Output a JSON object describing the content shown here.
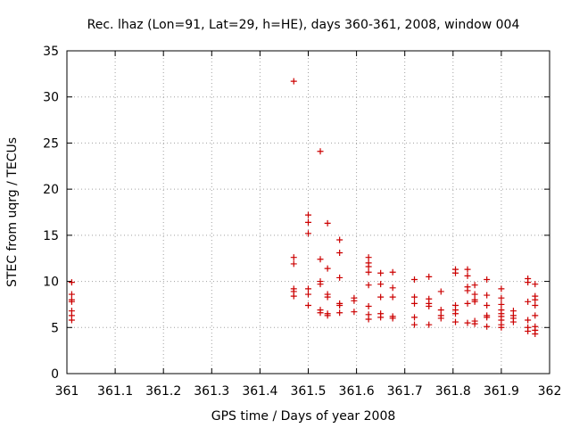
{
  "chart_data": {
    "type": "scatter",
    "title": "Rec. lhaz (Lon=91, Lat=29, h=HE), days 360-361, 2008, window 004",
    "xlabel": "GPS time / Days of year 2008",
    "ylabel": "STEC from uqrg / TECUs",
    "xlim": [
      361,
      362
    ],
    "ylim": [
      0,
      35
    ],
    "xticks": [
      "361",
      "361.1",
      "361.2",
      "361.3",
      "361.4",
      "361.5",
      "361.6",
      "361.7",
      "361.8",
      "361.9",
      "362"
    ],
    "yticks": [
      "0",
      "5",
      "10",
      "15",
      "20",
      "25",
      "30",
      "35"
    ],
    "grid": true,
    "marker": "+",
    "color": "#cc0000",
    "points": [
      [
        361.01,
        9.9
      ],
      [
        361.01,
        8.6
      ],
      [
        361.01,
        8.0
      ],
      [
        361.01,
        7.8
      ],
      [
        361.01,
        6.8
      ],
      [
        361.01,
        6.3
      ],
      [
        361.01,
        5.8
      ],
      [
        361.47,
        31.7
      ],
      [
        361.47,
        12.6
      ],
      [
        361.47,
        11.9
      ],
      [
        361.47,
        9.2
      ],
      [
        361.47,
        8.9
      ],
      [
        361.47,
        8.4
      ],
      [
        361.5,
        17.2
      ],
      [
        361.5,
        16.4
      ],
      [
        361.5,
        15.2
      ],
      [
        361.5,
        9.2
      ],
      [
        361.5,
        8.6
      ],
      [
        361.5,
        7.4
      ],
      [
        361.525,
        24.1
      ],
      [
        361.525,
        12.4
      ],
      [
        361.525,
        10.0
      ],
      [
        361.525,
        9.7
      ],
      [
        361.525,
        6.9
      ],
      [
        361.525,
        6.6
      ],
      [
        361.54,
        16.3
      ],
      [
        361.54,
        11.4
      ],
      [
        361.54,
        8.6
      ],
      [
        361.54,
        8.3
      ],
      [
        361.54,
        6.5
      ],
      [
        361.54,
        6.3
      ],
      [
        361.565,
        14.5
      ],
      [
        361.565,
        13.1
      ],
      [
        361.565,
        10.4
      ],
      [
        361.565,
        7.6
      ],
      [
        361.565,
        7.4
      ],
      [
        361.565,
        6.6
      ],
      [
        361.595,
        8.2
      ],
      [
        361.595,
        7.9
      ],
      [
        361.595,
        6.7
      ],
      [
        361.625,
        12.6
      ],
      [
        361.625,
        12.0
      ],
      [
        361.625,
        11.6
      ],
      [
        361.625,
        11.0
      ],
      [
        361.625,
        9.6
      ],
      [
        361.625,
        7.3
      ],
      [
        361.625,
        6.4
      ],
      [
        361.625,
        5.9
      ],
      [
        361.65,
        10.9
      ],
      [
        361.65,
        9.7
      ],
      [
        361.65,
        8.3
      ],
      [
        361.65,
        6.5
      ],
      [
        361.65,
        6.1
      ],
      [
        361.675,
        11.0
      ],
      [
        361.675,
        9.3
      ],
      [
        361.675,
        8.3
      ],
      [
        361.675,
        6.2
      ],
      [
        361.675,
        6.0
      ],
      [
        361.72,
        10.2
      ],
      [
        361.72,
        8.3
      ],
      [
        361.72,
        7.6
      ],
      [
        361.72,
        6.1
      ],
      [
        361.72,
        5.3
      ],
      [
        361.75,
        10.5
      ],
      [
        361.75,
        8.1
      ],
      [
        361.75,
        7.6
      ],
      [
        361.75,
        7.3
      ],
      [
        361.75,
        5.3
      ],
      [
        361.775,
        8.9
      ],
      [
        361.775,
        6.9
      ],
      [
        361.775,
        6.3
      ],
      [
        361.775,
        6.0
      ],
      [
        361.805,
        11.3
      ],
      [
        361.805,
        10.9
      ],
      [
        361.805,
        7.4
      ],
      [
        361.805,
        6.9
      ],
      [
        361.805,
        6.5
      ],
      [
        361.805,
        5.6
      ],
      [
        361.83,
        11.3
      ],
      [
        361.83,
        10.6
      ],
      [
        361.83,
        9.4
      ],
      [
        361.83,
        9.0
      ],
      [
        361.83,
        7.6
      ],
      [
        361.83,
        5.5
      ],
      [
        361.845,
        9.6
      ],
      [
        361.845,
        8.6
      ],
      [
        361.845,
        8.0
      ],
      [
        361.845,
        7.8
      ],
      [
        361.845,
        5.7
      ],
      [
        361.845,
        5.4
      ],
      [
        361.87,
        10.2
      ],
      [
        361.87,
        8.5
      ],
      [
        361.87,
        7.4
      ],
      [
        361.87,
        6.3
      ],
      [
        361.87,
        6.1
      ],
      [
        361.87,
        5.1
      ],
      [
        361.9,
        9.2
      ],
      [
        361.9,
        8.2
      ],
      [
        361.9,
        7.5
      ],
      [
        361.9,
        6.9
      ],
      [
        361.9,
        6.5
      ],
      [
        361.9,
        6.2
      ],
      [
        361.9,
        5.8
      ],
      [
        361.9,
        5.3
      ],
      [
        361.9,
        5.0
      ],
      [
        361.925,
        6.8
      ],
      [
        361.925,
        6.3
      ],
      [
        361.925,
        6.0
      ],
      [
        361.925,
        5.6
      ],
      [
        361.955,
        10.3
      ],
      [
        361.955,
        9.9
      ],
      [
        361.955,
        7.8
      ],
      [
        361.955,
        5.8
      ],
      [
        361.955,
        5.0
      ],
      [
        361.955,
        4.6
      ],
      [
        361.97,
        9.7
      ],
      [
        361.97,
        8.4
      ],
      [
        361.97,
        8.0
      ],
      [
        361.97,
        7.4
      ],
      [
        361.97,
        6.3
      ],
      [
        361.97,
        5.1
      ],
      [
        361.97,
        4.7
      ],
      [
        361.97,
        4.3
      ]
    ]
  }
}
